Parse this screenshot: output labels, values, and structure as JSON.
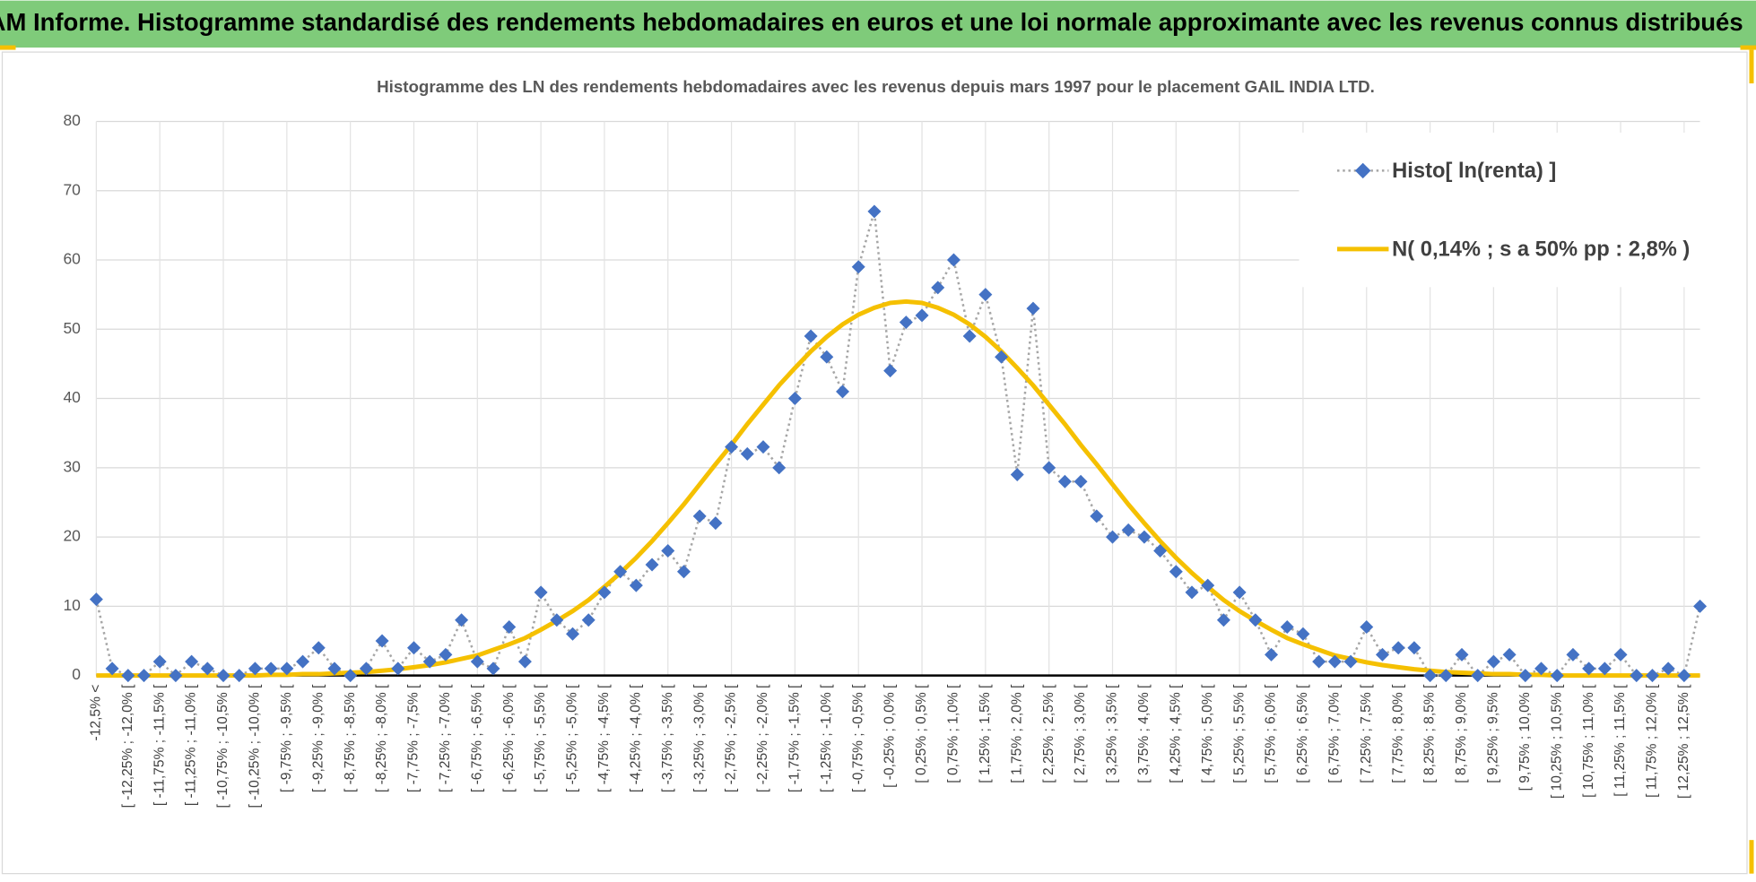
{
  "header": {
    "title": "ADAM Informe. Histogramme standardisé des rendements hebdomadaires en euros et une loi normale approximante avec les revenus connus distribués"
  },
  "chart_data": {
    "type": "line",
    "title": "Histogramme des LN des rendements hebdomadaires avec les revenus depuis mars 1997 pour le placement GAIL INDIA LTD.",
    "categories": [
      "-12,5% <",
      null,
      "[ -12,25% ; -12,0% [",
      null,
      "[ -11,75% ; -11,5% [",
      null,
      "[ -11,25% ; -11,0% [",
      null,
      "[ -10,75% ; -10,5% [",
      null,
      "[ -10,25% ; -10,0% [",
      null,
      "[ -9,75% ; -9,5% [",
      null,
      "[ -9,25% ; -9,0% [",
      null,
      "[ -8,75% ; -8,5% [",
      null,
      "[ -8,25% ; -8,0% [",
      null,
      "[ -7,75% ; -7,5% [",
      null,
      "[ -7,25% ; -7,0% [",
      null,
      "[ -6,75% ; -6,5% [",
      null,
      "[ -6,25% ; -6,0% [",
      null,
      "[ -5,75% ; -5,5% [",
      null,
      "[ -5,25% ; -5,0% [",
      null,
      "[ -4,75% ; -4,5% [",
      null,
      "[ -4,25% ; -4,0% [",
      null,
      "[ -3,75% ; -3,5% [",
      null,
      "[ -3,25% ; -3,0% [",
      null,
      "[ -2,75% ; -2,5% [",
      null,
      "[ -2,25% ; -2,0% [",
      null,
      "[ -1,75% ; -1,5% [",
      null,
      "[ -1,25% ; -1,0% [",
      null,
      "[ -0,75% ; -0,5% [",
      null,
      "[ -0,25% ; 0,0% [",
      null,
      "[ 0,25% ; 0,5% [",
      null,
      "[ 0,75% ; 1,0% [",
      null,
      "[ 1,25% ; 1,5% [",
      null,
      "[ 1,75% ; 2,0% [",
      null,
      "[ 2,25% ; 2,5% [",
      null,
      "[ 2,75% ; 3,0% [",
      null,
      "[ 3,25% ; 3,5% [",
      null,
      "[ 3,75% ; 4,0% [",
      null,
      "[ 4,25% ; 4,5% [",
      null,
      "[ 4,75% ; 5,0% [",
      null,
      "[ 5,25% ; 5,5% [",
      null,
      "[ 5,75% ; 6,0% [",
      null,
      "[ 6,25% ; 6,5% [",
      null,
      "[ 6,75% ; 7,0% [",
      null,
      "[ 7,25% ; 7,5% [",
      null,
      "[ 7,75% ; 8,0% [",
      null,
      "[ 8,25% ; 8,5% [",
      null,
      "[ 8,75% ; 9,0% [",
      null,
      "[ 9,25% ; 9,5% [",
      null,
      "[ 9,75% ; 10,0% [",
      null,
      "[ 10,25% ; 10,5% [",
      null,
      "[ 10,75% ; 11,0% [",
      null,
      "[ 11,25% ; 11,5% [",
      null,
      "[ 11,75% ; 12,0% [",
      null,
      "[ 12,25% ; 12,5% [",
      null
    ],
    "series": [
      {
        "name": "Histo[ ln(renta) ]",
        "color": "#4472c4",
        "line_color": "#a6a6a6",
        "values": [
          11,
          1,
          0,
          0,
          2,
          0,
          2,
          1,
          0,
          0,
          1,
          1,
          1,
          2,
          4,
          1,
          0,
          1,
          5,
          1,
          4,
          2,
          3,
          8,
          2,
          1,
          7,
          2,
          12,
          8,
          6,
          8,
          12,
          15,
          13,
          16,
          18,
          15,
          23,
          22,
          33,
          32,
          33,
          30,
          40,
          49,
          46,
          41,
          59,
          67,
          44,
          51,
          52,
          56,
          60,
          49,
          55,
          46,
          29,
          53,
          30,
          28,
          28,
          23,
          20,
          21,
          20,
          18,
          15,
          12,
          13,
          8,
          12,
          8,
          3,
          7,
          6,
          2,
          2,
          2,
          7,
          3,
          4,
          4,
          0,
          0,
          3,
          0,
          2,
          3,
          0,
          1,
          0,
          3,
          1,
          1,
          3,
          0,
          0,
          1,
          0,
          10
        ]
      },
      {
        "name": "N( 0,14% ; s a 50% pp : 2,8% )",
        "color": "#f5c000",
        "values": [
          0,
          0,
          0,
          0,
          0,
          0,
          0,
          0,
          0,
          0,
          0,
          0.1,
          0.1,
          0.2,
          0.2,
          0.3,
          0.4,
          0.5,
          0.7,
          0.9,
          1.2,
          1.5,
          1.9,
          2.4,
          2.9,
          3.7,
          4.5,
          5.4,
          6.6,
          7.9,
          9.3,
          10.9,
          12.8,
          14.8,
          17.0,
          19.4,
          22.0,
          24.7,
          27.6,
          30.5,
          33.3,
          36.3,
          39.1,
          41.9,
          44.4,
          46.8,
          48.9,
          50.7,
          52.1,
          53.1,
          53.8,
          54.0,
          53.8,
          53.1,
          52.1,
          50.7,
          48.9,
          46.8,
          44.4,
          41.9,
          39.1,
          36.3,
          33.3,
          30.5,
          27.6,
          24.7,
          22.0,
          19.4,
          17.0,
          14.8,
          12.8,
          10.9,
          9.3,
          7.9,
          6.6,
          5.4,
          4.5,
          3.7,
          2.9,
          2.4,
          1.9,
          1.5,
          1.2,
          0.9,
          0.7,
          0.5,
          0.4,
          0.3,
          0.2,
          0.2,
          0.1,
          0.1,
          0,
          0,
          0,
          0,
          0,
          0,
          0,
          0,
          0,
          0
        ]
      }
    ],
    "ylim": [
      0,
      80
    ],
    "yticks": [
      0,
      10,
      20,
      30,
      40,
      50,
      60,
      70,
      80
    ],
    "grid": true,
    "legend": "top-right"
  }
}
